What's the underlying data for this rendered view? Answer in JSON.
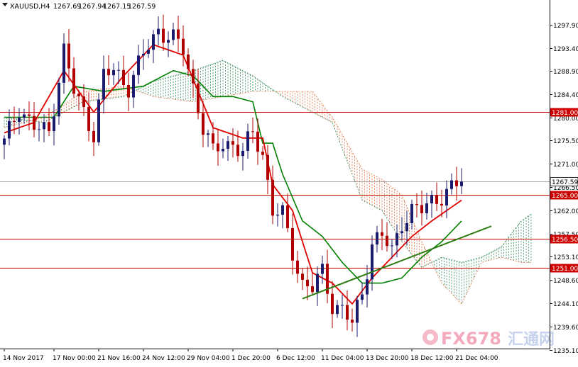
{
  "header": {
    "symbol": "XAUUSD,H4",
    "open": "1267.69",
    "high": "1267.94",
    "low": "1267.15",
    "close": "1267.59"
  },
  "watermark": {
    "brand": "FX678",
    "cn": "汇通网"
  },
  "colors": {
    "up_candle": "#1a1a6e",
    "down_candle": "#b00000",
    "tenkan": "#e00000",
    "kijun": "#008000",
    "cloud_bull": "#2e8b57",
    "cloud_bear": "#e07040",
    "hline": "#d00000",
    "trendline": "#2e7d12",
    "price_tag": "#cc0000"
  },
  "chart_data": {
    "type": "candlestick",
    "title": "XAUUSD,H4",
    "indicator": "Ichimoku",
    "ylim": [
      1235.1,
      1301.4
    ],
    "y_ticks": [
      "1297.90",
      "1293.40",
      "1288.90",
      "1284.40",
      "1280.00",
      "1275.50",
      "1271.00",
      "1266.50",
      "1262.00",
      "1257.50",
      "1253.10",
      "1248.60",
      "1244.10",
      "1239.60",
      "1235.10"
    ],
    "x_ticks": [
      "14 Nov 2017",
      "17 Nov 00:00",
      "21 Nov 16:00",
      "24 Nov 12:00",
      "29 Nov 04:00",
      "1 Dec 20:00",
      "6 Dec 12:00",
      "11 Dec 04:00",
      "13 Dec 20:00",
      "18 Dec 12:00",
      "21 Dec 04:00"
    ],
    "x_tick_index": [
      0,
      10,
      19,
      28,
      37,
      46,
      55,
      64,
      73,
      82,
      91
    ],
    "n_bars": 93,
    "close_anchors": [
      [
        0,
        1275
      ],
      [
        3,
        1282
      ],
      [
        6,
        1278
      ],
      [
        9,
        1277
      ],
      [
        12,
        1293
      ],
      [
        14,
        1285
      ],
      [
        16,
        1281
      ],
      [
        18,
        1277
      ],
      [
        20,
        1288
      ],
      [
        22,
        1289
      ],
      [
        25,
        1286
      ],
      [
        28,
        1292
      ],
      [
        31,
        1297
      ],
      [
        34,
        1295
      ],
      [
        36,
        1293
      ],
      [
        38,
        1286
      ],
      [
        40,
        1278
      ],
      [
        42,
        1273
      ],
      [
        44,
        1275
      ],
      [
        46,
        1275
      ],
      [
        48,
        1273
      ],
      [
        50,
        1277
      ],
      [
        52,
        1273
      ],
      [
        54,
        1262
      ],
      [
        56,
        1261
      ],
      [
        58,
        1254
      ],
      [
        60,
        1248
      ],
      [
        62,
        1247
      ],
      [
        64,
        1250
      ],
      [
        66,
        1244
      ],
      [
        68,
        1243
      ],
      [
        70,
        1240
      ],
      [
        72,
        1246
      ],
      [
        74,
        1256
      ],
      [
        76,
        1257
      ],
      [
        78,
        1254
      ],
      [
        80,
        1260
      ],
      [
        82,
        1262
      ],
      [
        84,
        1262
      ],
      [
        86,
        1264
      ],
      [
        88,
        1265
      ],
      [
        90,
        1266
      ],
      [
        92,
        1267.6
      ]
    ],
    "tenkan_anchors": [
      [
        0,
        1277
      ],
      [
        6,
        1279
      ],
      [
        12,
        1289
      ],
      [
        18,
        1281
      ],
      [
        24,
        1288
      ],
      [
        30,
        1294
      ],
      [
        36,
        1292
      ],
      [
        42,
        1278
      ],
      [
        48,
        1276
      ],
      [
        52,
        1276
      ],
      [
        54,
        1267
      ],
      [
        58,
        1262
      ],
      [
        62,
        1250
      ],
      [
        66,
        1248
      ],
      [
        70,
        1244
      ],
      [
        74,
        1249
      ],
      [
        78,
        1253
      ],
      [
        82,
        1257
      ],
      [
        86,
        1260
      ],
      [
        89,
        1262
      ],
      [
        92,
        1264
      ]
    ],
    "kijun_anchors": [
      [
        0,
        1280
      ],
      [
        10,
        1280
      ],
      [
        14,
        1286
      ],
      [
        20,
        1285
      ],
      [
        28,
        1286
      ],
      [
        34,
        1289
      ],
      [
        38,
        1288
      ],
      [
        42,
        1284
      ],
      [
        46,
        1284
      ],
      [
        50,
        1283
      ],
      [
        52,
        1275
      ],
      [
        54,
        1275
      ],
      [
        56,
        1269
      ],
      [
        60,
        1260
      ],
      [
        64,
        1257
      ],
      [
        68,
        1252
      ],
      [
        72,
        1248
      ],
      [
        76,
        1248
      ],
      [
        80,
        1249
      ],
      [
        84,
        1253
      ],
      [
        88,
        1256
      ],
      [
        92,
        1260
      ]
    ],
    "cloud_a": [
      [
        0,
        1280
      ],
      [
        8,
        1279
      ],
      [
        16,
        1283
      ],
      [
        24,
        1284
      ],
      [
        30,
        1287
      ],
      [
        38,
        1289
      ],
      [
        44,
        1291
      ],
      [
        50,
        1288
      ],
      [
        56,
        1284
      ],
      [
        62,
        1281
      ],
      [
        66,
        1279
      ],
      [
        72,
        1264
      ],
      [
        76,
        1262
      ],
      [
        80,
        1256
      ],
      [
        84,
        1251
      ],
      [
        88,
        1253
      ],
      [
        92,
        1252
      ],
      [
        96,
        1253
      ],
      [
        100,
        1255
      ],
      [
        104,
        1260
      ],
      [
        107,
        1262
      ]
    ],
    "cloud_b": [
      [
        0,
        1278
      ],
      [
        8,
        1280
      ],
      [
        16,
        1285
      ],
      [
        24,
        1286
      ],
      [
        30,
        1284
      ],
      [
        38,
        1283
      ],
      [
        44,
        1284
      ],
      [
        50,
        1285
      ],
      [
        56,
        1285
      ],
      [
        62,
        1285
      ],
      [
        66,
        1280
      ],
      [
        72,
        1270
      ],
      [
        76,
        1268
      ],
      [
        80,
        1265
      ],
      [
        84,
        1256
      ],
      [
        88,
        1248
      ],
      [
        92,
        1244
      ],
      [
        96,
        1252
      ],
      [
        100,
        1253
      ],
      [
        104,
        1252
      ],
      [
        107,
        1252
      ]
    ],
    "horizontal_levels": [
      {
        "price": 1281.0,
        "label": "1281.00"
      },
      {
        "price": 1265.0,
        "label": "1265.00"
      },
      {
        "price": 1256.5,
        "label": "1256.50"
      },
      {
        "price": 1251.0,
        "label": "1251.00"
      }
    ],
    "current_price": {
      "price": 1267.59,
      "label": "1267.59"
    },
    "trendline": {
      "from": [
        60,
        1245
      ],
      "to": [
        98,
        1259
      ]
    }
  }
}
